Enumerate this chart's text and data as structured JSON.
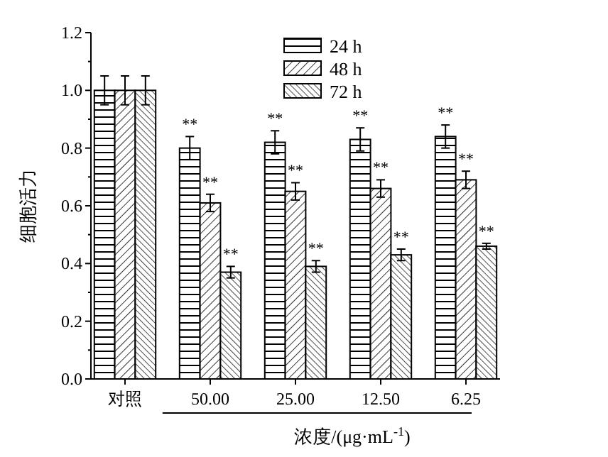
{
  "chart_data": {
    "type": "bar",
    "xlabel": "浓度/(μg·mL$^{-1}$)",
    "ylabel": "细胞活力",
    "categories": [
      "对照",
      "50.00",
      "25.00",
      "12.50",
      "6.25"
    ],
    "series": [
      {
        "name": "24 h",
        "color": "#000000",
        "values": [
          1.0,
          0.8,
          0.82,
          0.83,
          0.84
        ],
        "errors": [
          0.05,
          0.04,
          0.04,
          0.04,
          0.04
        ]
      },
      {
        "name": "48 h",
        "color": "#000000",
        "values": [
          1.0,
          0.61,
          0.65,
          0.66,
          0.69
        ],
        "errors": [
          0.05,
          0.03,
          0.03,
          0.03,
          0.03
        ]
      },
      {
        "name": "72 h",
        "color": "#000000",
        "values": [
          1.0,
          0.37,
          0.39,
          0.43,
          0.46
        ],
        "errors": [
          0.05,
          0.02,
          0.02,
          0.02,
          0.01
        ]
      }
    ],
    "ylim": [
      0,
      1.2
    ],
    "yticks": [
      {
        "value": 0,
        "label": "0.0"
      },
      {
        "value": 0.1,
        "label": null
      },
      {
        "value": 0.2,
        "label": "0.2"
      },
      {
        "value": 0.3,
        "label": null
      },
      {
        "value": 0.4,
        "label": "0.4"
      },
      {
        "value": 0.5,
        "label": null
      },
      {
        "value": 0.6,
        "label": "0.6"
      },
      {
        "value": 0.7,
        "label": null
      },
      {
        "value": 0.8,
        "label": "0.8"
      },
      {
        "value": 0.9,
        "label": null
      },
      {
        "value": 1.0,
        "label": "1.0"
      },
      {
        "value": 1.1,
        "label": null
      },
      {
        "value": 1.2,
        "label": "1.2"
      }
    ],
    "legend": "top right",
    "grid": false,
    "annotations": [
      "**",
      "**",
      "**",
      "**",
      "**",
      "**",
      "**",
      "**",
      "**",
      "**",
      "**",
      "**"
    ]
  }
}
